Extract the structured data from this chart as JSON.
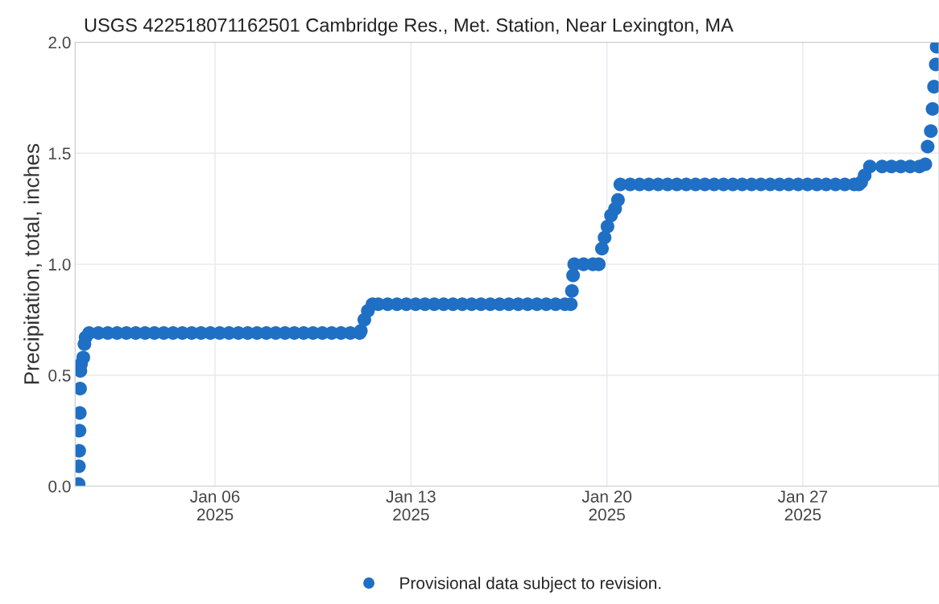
{
  "chart_data": {
    "type": "scatter",
    "title": "USGS 422518071162501 Cambridge Res., Met. Station, Near Lexington, MA",
    "ylabel": "Precipitation, total, inches",
    "xlim": [
      "2025-01-01T00:00",
      "2025-01-31T20:45"
    ],
    "xticks": [
      {
        "value": "2025-01-06",
        "label": "Jan 06\n2025"
      },
      {
        "value": "2025-01-13",
        "label": "Jan 13\n2025"
      },
      {
        "value": "2025-01-20",
        "label": "Jan 20\n2025"
      },
      {
        "value": "2025-01-27",
        "label": "Jan 27\n2025"
      }
    ],
    "ylim": [
      0,
      2
    ],
    "yticks": [
      {
        "value": 0,
        "label": "0.0"
      },
      {
        "value": 0.5,
        "label": "0.5"
      },
      {
        "value": 1,
        "label": "1.0"
      },
      {
        "value": 1.5,
        "label": "1.5"
      },
      {
        "value": 2,
        "label": "2.0"
      }
    ],
    "grid": true,
    "legend": "bottom",
    "marker": "circle",
    "series": [
      {
        "name": "Provisional data subject to revision.",
        "color": "#1f6fc5",
        "x": [
          "2025-01-01T03:00",
          "2025-01-01T03:15",
          "2025-01-01T03:30",
          "2025-01-01T03:45",
          "2025-01-01T04:00",
          "2025-01-01T04:15",
          "2025-01-01T04:30",
          "2025-01-01T05:00",
          "2025-01-01T07:00",
          "2025-01-01T08:00",
          "2025-01-01T09:00",
          "2025-01-01T12:00",
          "2025-01-01T20:00",
          "2025-01-02T04:00",
          "2025-01-02T12:00",
          "2025-01-02T20:00",
          "2025-01-03T04:00",
          "2025-01-03T12:00",
          "2025-01-03T20:00",
          "2025-01-04T04:00",
          "2025-01-04T12:00",
          "2025-01-04T20:00",
          "2025-01-05T04:00",
          "2025-01-05T12:00",
          "2025-01-05T20:00",
          "2025-01-06T04:00",
          "2025-01-06T12:00",
          "2025-01-06T20:00",
          "2025-01-07T04:00",
          "2025-01-07T12:00",
          "2025-01-07T20:00",
          "2025-01-08T04:00",
          "2025-01-08T12:00",
          "2025-01-08T20:00",
          "2025-01-09T04:00",
          "2025-01-09T12:00",
          "2025-01-09T20:00",
          "2025-01-10T04:00",
          "2025-01-10T12:00",
          "2025-01-10T20:00",
          "2025-01-11T04:00",
          "2025-01-11T05:00",
          "2025-01-11T08:00",
          "2025-01-11T11:00",
          "2025-01-11T15:00",
          "2025-01-11T20:00",
          "2025-01-12T04:00",
          "2025-01-12T12:00",
          "2025-01-12T20:00",
          "2025-01-13T04:00",
          "2025-01-13T12:00",
          "2025-01-13T20:00",
          "2025-01-14T04:00",
          "2025-01-14T12:00",
          "2025-01-14T20:00",
          "2025-01-15T04:00",
          "2025-01-15T12:00",
          "2025-01-15T20:00",
          "2025-01-16T04:00",
          "2025-01-16T12:00",
          "2025-01-16T20:00",
          "2025-01-17T04:00",
          "2025-01-17T12:00",
          "2025-01-17T20:00",
          "2025-01-18T04:00",
          "2025-01-18T12:00",
          "2025-01-18T17:00",
          "2025-01-18T18:00",
          "2025-01-18T19:00",
          "2025-01-18T20:00",
          "2025-01-19T04:00",
          "2025-01-19T12:00",
          "2025-01-19T17:00",
          "2025-01-19T19:45",
          "2025-01-19T22:00",
          "2025-01-20T00:30",
          "2025-01-20T03:30",
          "2025-01-20T07:00",
          "2025-01-20T09:30",
          "2025-01-20T11:30",
          "2025-01-20T20:00",
          "2025-01-21T04:00",
          "2025-01-21T12:00",
          "2025-01-21T20:00",
          "2025-01-22T04:00",
          "2025-01-22T12:00",
          "2025-01-22T20:00",
          "2025-01-23T04:00",
          "2025-01-23T12:00",
          "2025-01-23T20:00",
          "2025-01-24T04:00",
          "2025-01-24T12:00",
          "2025-01-24T20:00",
          "2025-01-25T04:00",
          "2025-01-25T12:00",
          "2025-01-25T20:00",
          "2025-01-26T04:00",
          "2025-01-26T12:00",
          "2025-01-26T20:00",
          "2025-01-27T04:00",
          "2025-01-27T12:00",
          "2025-01-27T20:00",
          "2025-01-28T04:00",
          "2025-01-28T12:00",
          "2025-01-28T20:00",
          "2025-01-29T00:00",
          "2025-01-29T02:00",
          "2025-01-29T05:00",
          "2025-01-29T09:30",
          "2025-01-29T20:00",
          "2025-01-30T04:00",
          "2025-01-30T12:00",
          "2025-01-30T20:00",
          "2025-01-31T04:00",
          "2025-01-31T09:00",
          "2025-01-31T11:00",
          "2025-01-31T13:45",
          "2025-01-31T15:15",
          "2025-01-31T16:30",
          "2025-01-31T18:00",
          "2025-01-31T18:45"
        ],
        "values": [
          0.01,
          0.09,
          0.16,
          0.25,
          0.33,
          0.44,
          0.52,
          0.55,
          0.58,
          0.64,
          0.67,
          0.69,
          0.69,
          0.69,
          0.69,
          0.69,
          0.69,
          0.69,
          0.69,
          0.69,
          0.69,
          0.69,
          0.69,
          0.69,
          0.69,
          0.69,
          0.69,
          0.69,
          0.69,
          0.69,
          0.69,
          0.69,
          0.69,
          0.69,
          0.69,
          0.69,
          0.69,
          0.69,
          0.69,
          0.69,
          0.69,
          0.7,
          0.75,
          0.79,
          0.82,
          0.82,
          0.82,
          0.82,
          0.82,
          0.82,
          0.82,
          0.82,
          0.82,
          0.82,
          0.82,
          0.82,
          0.82,
          0.82,
          0.82,
          0.82,
          0.82,
          0.82,
          0.82,
          0.82,
          0.82,
          0.82,
          0.82,
          0.88,
          0.95,
          1.0,
          1.0,
          1.0,
          1.0,
          1.07,
          1.12,
          1.17,
          1.22,
          1.25,
          1.29,
          1.36,
          1.36,
          1.36,
          1.36,
          1.36,
          1.36,
          1.36,
          1.36,
          1.36,
          1.36,
          1.36,
          1.36,
          1.36,
          1.36,
          1.36,
          1.36,
          1.36,
          1.36,
          1.36,
          1.36,
          1.36,
          1.36,
          1.36,
          1.36,
          1.36,
          1.36,
          1.36,
          1.37,
          1.4,
          1.44,
          1.44,
          1.44,
          1.44,
          1.44,
          1.44,
          1.45,
          1.53,
          1.6,
          1.7,
          1.8,
          1.9,
          1.98
        ]
      }
    ]
  }
}
